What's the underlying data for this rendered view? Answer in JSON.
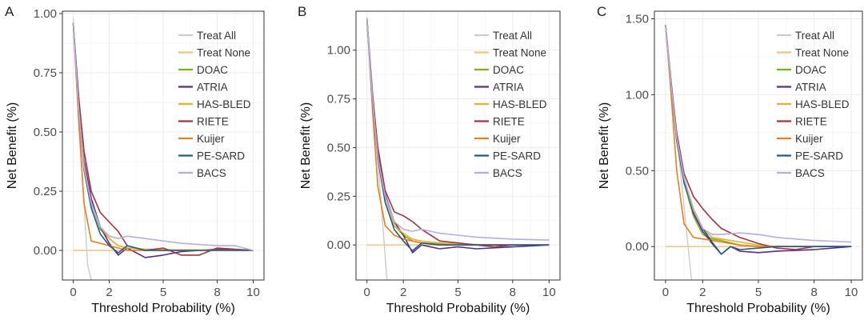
{
  "figure": {
    "panel_letters": [
      "A",
      "B",
      "C"
    ]
  },
  "legend": [
    {
      "name": "Treat All",
      "color": "#cccccc"
    },
    {
      "name": "Treat None",
      "color": "#f0c27b"
    },
    {
      "name": "DOAC",
      "color": "#7ab317"
    },
    {
      "name": "ATRIA",
      "color": "#5b2c83"
    },
    {
      "name": "HAS-BLED",
      "color": "#e8b12e"
    },
    {
      "name": "RIETE",
      "color": "#a8323e"
    },
    {
      "name": "Kuijer",
      "color": "#f07d1a"
    },
    {
      "name": "PE-SARD",
      "color": "#1f5c8c"
    },
    {
      "name": "BACS",
      "color": "#b6aedb"
    }
  ],
  "chart_data": [
    {
      "type": "line",
      "panel": "A",
      "xlabel": "Threshold Probability (%)",
      "ylabel": "Net Benefit (%)",
      "xlim": [
        -0.6,
        10.6
      ],
      "ylim": [
        -0.125,
        1.01
      ],
      "xticks": [
        0,
        2,
        5,
        8,
        10
      ],
      "xtick_labels": [
        "0",
        "2",
        "5",
        "8",
        "10"
      ],
      "yticks": [
        0,
        0.25,
        0.5,
        0.75,
        1.0
      ],
      "ytick_labels": [
        "0.00",
        "0.25",
        "0.50",
        "0.75",
        "1.00"
      ],
      "series": [
        {
          "name": "Treat All",
          "x": [
            0,
            0.8,
            1.0
          ],
          "y": [
            0.98,
            -0.06,
            -0.125
          ]
        },
        {
          "name": "Treat None",
          "x": [
            0,
            10
          ],
          "y": [
            0,
            0
          ]
        },
        {
          "name": "DOAC",
          "x": [
            0,
            0.3,
            0.6,
            1,
            1.5,
            2,
            2.5,
            3,
            4,
            5,
            6,
            8,
            10
          ],
          "y": [
            0.96,
            0.6,
            0.35,
            0.2,
            0.09,
            0.05,
            0.02,
            0.01,
            0.005,
            0.003,
            0.002,
            0.001,
            0
          ]
        },
        {
          "name": "ATRIA",
          "x": [
            0,
            0.3,
            0.6,
            1,
            1.5,
            2,
            2.5,
            3,
            4,
            5,
            6,
            8,
            10
          ],
          "y": [
            0.96,
            0.62,
            0.38,
            0.22,
            0.1,
            0.03,
            -0.02,
            0.01,
            -0.03,
            -0.02,
            -0.005,
            0.005,
            0
          ]
        },
        {
          "name": "HAS-BLED",
          "x": [
            0,
            0.3,
            0.6,
            1,
            1.5,
            2,
            2.5,
            3,
            4,
            5,
            6,
            8,
            10
          ],
          "y": [
            0.96,
            0.62,
            0.36,
            0.2,
            0.1,
            0.05,
            0.02,
            0.01,
            0.005,
            0.003,
            0.002,
            0.001,
            0
          ]
        },
        {
          "name": "RIETE",
          "x": [
            0,
            0.3,
            0.6,
            1,
            1.5,
            2,
            2.5,
            3,
            4,
            5,
            6,
            7,
            8,
            10
          ],
          "y": [
            0.96,
            0.65,
            0.42,
            0.25,
            0.16,
            0.12,
            0.08,
            0.02,
            0,
            0.01,
            -0.02,
            -0.02,
            0.01,
            0
          ]
        },
        {
          "name": "Kuijer",
          "x": [
            0,
            0.3,
            0.6,
            1,
            1.5,
            2,
            2.5,
            3,
            4,
            5,
            6,
            8,
            10
          ],
          "y": [
            0.96,
            0.55,
            0.2,
            0.04,
            0.03,
            0.02,
            0.01,
            0,
            0,
            0,
            0,
            0,
            0
          ]
        },
        {
          "name": "PE-SARD",
          "x": [
            0,
            0.3,
            0.6,
            1,
            1.5,
            2,
            2.5,
            3,
            4,
            5,
            6,
            8,
            10
          ],
          "y": [
            0.96,
            0.6,
            0.34,
            0.18,
            0.07,
            0.02,
            -0.01,
            0.02,
            0,
            0,
            0,
            0,
            0
          ]
        },
        {
          "name": "BACS",
          "x": [
            0,
            0.3,
            0.6,
            1,
            1.5,
            2,
            2.5,
            3,
            4,
            5,
            6,
            7,
            8,
            9,
            10
          ],
          "y": [
            0.96,
            0.6,
            0.35,
            0.2,
            0.1,
            0.06,
            0.05,
            0.06,
            0.05,
            0.04,
            0.03,
            0.025,
            0.02,
            0.02,
            0
          ]
        }
      ]
    },
    {
      "type": "line",
      "panel": "B",
      "xlabel": "Threshold Probability (%)",
      "ylabel": "Net Benefit (%)",
      "xlim": [
        -0.6,
        10.6
      ],
      "ylim": [
        -0.18,
        1.2
      ],
      "xticks": [
        0,
        2,
        5,
        8,
        10
      ],
      "xtick_labels": [
        "0",
        "2",
        "5",
        "8",
        "10"
      ],
      "yticks": [
        0,
        0.25,
        0.5,
        0.75,
        1.0
      ],
      "ytick_labels": [
        "0.00",
        "0.25",
        "0.50",
        "0.75",
        "1.00"
      ],
      "series": [
        {
          "name": "Treat All",
          "x": [
            0,
            1.1
          ],
          "y": [
            1.17,
            -0.18
          ]
        },
        {
          "name": "Treat None",
          "x": [
            0,
            10
          ],
          "y": [
            0,
            0
          ]
        },
        {
          "name": "DOAC",
          "x": [
            0,
            0.3,
            0.6,
            1,
            1.5,
            2,
            2.5,
            3,
            4,
            5,
            6,
            8,
            10
          ],
          "y": [
            1.16,
            0.75,
            0.45,
            0.25,
            0.1,
            0.05,
            0.02,
            0.01,
            0.005,
            0.003,
            0.002,
            0,
            0
          ]
        },
        {
          "name": "ATRIA",
          "x": [
            0,
            0.3,
            0.6,
            1,
            1.5,
            2,
            2.5,
            3,
            4,
            5,
            6,
            8,
            10
          ],
          "y": [
            1.16,
            0.75,
            0.46,
            0.26,
            0.12,
            0.05,
            -0.04,
            0,
            -0.02,
            -0.01,
            -0.02,
            -0.01,
            0
          ]
        },
        {
          "name": "HAS-BLED",
          "x": [
            0,
            0.3,
            0.6,
            1,
            1.5,
            2,
            2.5,
            3,
            4,
            5,
            6,
            8,
            10
          ],
          "y": [
            1.16,
            0.75,
            0.44,
            0.25,
            0.1,
            0.06,
            0.03,
            0.02,
            0.01,
            0.005,
            0.002,
            0,
            0
          ]
        },
        {
          "name": "RIETE",
          "x": [
            0,
            0.3,
            0.6,
            1,
            1.5,
            2,
            2.5,
            3,
            4,
            5,
            6,
            7,
            8,
            10
          ],
          "y": [
            1.16,
            0.78,
            0.5,
            0.28,
            0.17,
            0.15,
            0.12,
            0.08,
            0.02,
            0.01,
            0,
            -0.01,
            0,
            0
          ]
        },
        {
          "name": "Kuijer",
          "x": [
            0,
            0.3,
            0.6,
            1,
            1.5,
            2,
            2.5,
            3,
            4,
            5,
            6,
            8,
            10
          ],
          "y": [
            1.16,
            0.7,
            0.3,
            0.1,
            0.05,
            0.03,
            0.02,
            0.01,
            0,
            0,
            0,
            0,
            0
          ]
        },
        {
          "name": "PE-SARD",
          "x": [
            0,
            0.3,
            0.6,
            1,
            1.5,
            2,
            2.5,
            3,
            4,
            5,
            6,
            8,
            10
          ],
          "y": [
            1.16,
            0.74,
            0.44,
            0.22,
            0.08,
            0.02,
            -0.03,
            0.01,
            0,
            0,
            0,
            0,
            0
          ]
        },
        {
          "name": "BACS",
          "x": [
            0,
            0.3,
            0.6,
            1,
            1.5,
            2,
            2.5,
            3,
            4,
            5,
            6,
            7,
            8,
            10
          ],
          "y": [
            1.16,
            0.75,
            0.45,
            0.25,
            0.12,
            0.08,
            0.07,
            0.08,
            0.06,
            0.05,
            0.04,
            0.035,
            0.03,
            0.025
          ]
        }
      ]
    },
    {
      "type": "line",
      "panel": "C",
      "xlabel": "Threshold Probability (%)",
      "ylabel": "Net Benefit (%)",
      "xlim": [
        -0.6,
        10.6
      ],
      "ylim": [
        -0.22,
        1.55
      ],
      "xticks": [
        0,
        2,
        5,
        8,
        10
      ],
      "xtick_labels": [
        "0",
        "2",
        "5",
        "8",
        "10"
      ],
      "yticks": [
        0,
        0.5,
        1.0,
        1.5
      ],
      "ytick_labels": [
        "0.00",
        "0.50",
        "1.00",
        "1.50"
      ],
      "series": [
        {
          "name": "Treat All",
          "x": [
            0,
            1.4
          ],
          "y": [
            1.46,
            -0.22
          ]
        },
        {
          "name": "Treat None",
          "x": [
            0,
            10
          ],
          "y": [
            0,
            0
          ]
        },
        {
          "name": "DOAC",
          "x": [
            0,
            0.3,
            0.6,
            1,
            1.5,
            2,
            2.5,
            3,
            4,
            5,
            6,
            8,
            10
          ],
          "y": [
            1.46,
            1.05,
            0.7,
            0.42,
            0.2,
            0.08,
            0.05,
            0.04,
            0.01,
            0,
            0,
            0,
            0
          ]
        },
        {
          "name": "ATRIA",
          "x": [
            0,
            0.3,
            0.6,
            1,
            1.5,
            2,
            2.5,
            3,
            3.5,
            4,
            5,
            6,
            8,
            10
          ],
          "y": [
            1.46,
            1.07,
            0.72,
            0.44,
            0.22,
            0.1,
            0.02,
            -0.05,
            0.0,
            -0.03,
            -0.04,
            -0.03,
            -0.02,
            0
          ]
        },
        {
          "name": "HAS-BLED",
          "x": [
            0,
            0.3,
            0.6,
            1,
            1.5,
            2,
            2.5,
            3,
            4,
            5,
            6,
            8,
            10
          ],
          "y": [
            1.46,
            1.05,
            0.7,
            0.45,
            0.25,
            0.12,
            0.06,
            0.05,
            0.03,
            0.01,
            0,
            0,
            0
          ]
        },
        {
          "name": "RIETE",
          "x": [
            0,
            0.3,
            0.6,
            1,
            1.5,
            2,
            2.5,
            3,
            4,
            5,
            6,
            7,
            8,
            10
          ],
          "y": [
            1.46,
            1.08,
            0.75,
            0.48,
            0.33,
            0.25,
            0.18,
            0.12,
            0.06,
            0.02,
            -0.01,
            -0.02,
            0,
            0
          ]
        },
        {
          "name": "Kuijer",
          "x": [
            0,
            0.3,
            0.6,
            1,
            1.5,
            2,
            2.5,
            3,
            4,
            5,
            6,
            8,
            10
          ],
          "y": [
            1.46,
            1.0,
            0.5,
            0.15,
            0.06,
            0.05,
            0.04,
            0.03,
            0.01,
            0,
            0,
            0,
            0
          ]
        },
        {
          "name": "PE-SARD",
          "x": [
            0,
            0.3,
            0.6,
            1,
            1.5,
            2,
            2.5,
            3,
            3.5,
            4,
            5,
            6,
            8,
            10
          ],
          "y": [
            1.46,
            1.06,
            0.7,
            0.42,
            0.24,
            0.12,
            0.03,
            -0.05,
            0.0,
            -0.02,
            -0.01,
            0,
            0,
            0
          ]
        },
        {
          "name": "BACS",
          "x": [
            0,
            0.3,
            0.6,
            1,
            1.5,
            2,
            2.5,
            3,
            4,
            5,
            6,
            7,
            8,
            10
          ],
          "y": [
            1.46,
            1.06,
            0.72,
            0.45,
            0.24,
            0.12,
            0.08,
            0.08,
            0.09,
            0.08,
            0.06,
            0.05,
            0.04,
            0.03
          ]
        }
      ]
    }
  ]
}
